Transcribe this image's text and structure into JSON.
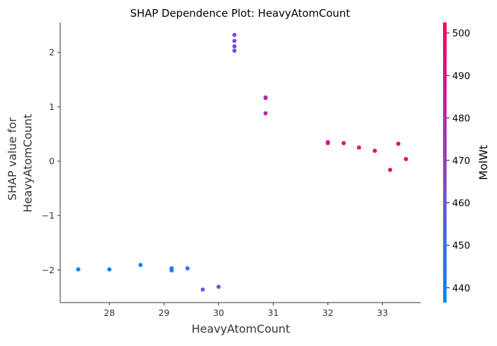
{
  "chart_data": {
    "type": "scatter",
    "title": "SHAP Dependence Plot: HeavyAtomCount",
    "xlabel": "HeavyAtomCount",
    "ylabel_lines": [
      "SHAP value for",
      "HeavyAtomCount"
    ],
    "colorbar_label": "MolWt",
    "xlim": [
      27.1,
      33.7
    ],
    "ylim": [
      -2.6,
      2.55
    ],
    "x_ticks": [
      28,
      29,
      30,
      31,
      32,
      33
    ],
    "y_ticks": [
      -2,
      -1,
      0,
      1,
      2
    ],
    "y_tick_labels": [
      "−2",
      "−1",
      "0",
      "1",
      "2"
    ],
    "colorbar": {
      "range": [
        436.5,
        502.5
      ],
      "ticks": [
        440,
        450,
        460,
        470,
        480,
        490,
        500
      ],
      "colormap": [
        "#008afb",
        "#3a6ef0",
        "#7d4fd6",
        "#ae2eaf",
        "#d6148a",
        "#ff0052"
      ]
    },
    "points": [
      {
        "x": 27.43,
        "y": -1.99,
        "c": 440
      },
      {
        "x": 28.0,
        "y": -1.99,
        "c": 440
      },
      {
        "x": 28.57,
        "y": -1.91,
        "c": 443
      },
      {
        "x": 29.14,
        "y": -1.97,
        "c": 445
      },
      {
        "x": 29.14,
        "y": -2.01,
        "c": 445
      },
      {
        "x": 29.43,
        "y": -1.97,
        "c": 447
      },
      {
        "x": 29.71,
        "y": -2.36,
        "c": 458
      },
      {
        "x": 30.0,
        "y": -2.31,
        "c": 461
      },
      {
        "x": 30.29,
        "y": 2.32,
        "c": 463
      },
      {
        "x": 30.29,
        "y": 2.21,
        "c": 463
      },
      {
        "x": 30.29,
        "y": 2.11,
        "c": 464
      },
      {
        "x": 30.29,
        "y": 2.03,
        "c": 464
      },
      {
        "x": 30.86,
        "y": 1.17,
        "c": 476
      },
      {
        "x": 30.86,
        "y": 1.16,
        "c": 476
      },
      {
        "x": 30.86,
        "y": 0.88,
        "c": 478
      },
      {
        "x": 32.0,
        "y": 0.35,
        "c": 489
      },
      {
        "x": 32.0,
        "y": 0.33,
        "c": 489
      },
      {
        "x": 32.29,
        "y": 0.33,
        "c": 490
      },
      {
        "x": 32.57,
        "y": 0.25,
        "c": 492
      },
      {
        "x": 32.86,
        "y": 0.19,
        "c": 493
      },
      {
        "x": 33.14,
        "y": -0.16,
        "c": 496
      },
      {
        "x": 33.29,
        "y": 0.32,
        "c": 496
      },
      {
        "x": 33.43,
        "y": 0.04,
        "c": 498
      }
    ]
  }
}
